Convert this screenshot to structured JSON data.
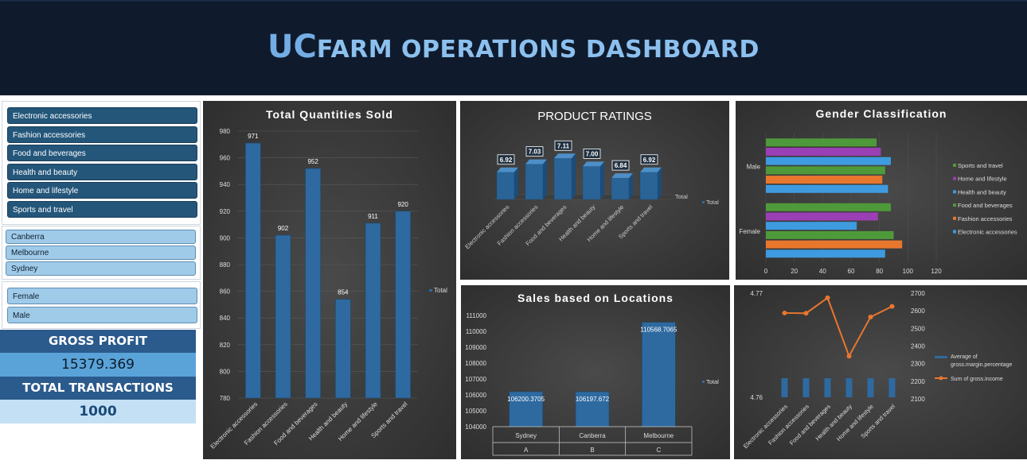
{
  "header": {
    "title_uc": "UC",
    "title_rest": "FARM OPERATIONS DASHBOARD"
  },
  "slicers": {
    "products": [
      "Electronic accessories",
      "Fashion accessories",
      "Food and beverages",
      "Health and beauty",
      "Home and lifestyle",
      "Sports and travel"
    ],
    "cities": [
      "Canberra",
      "Melbourne",
      "Sydney"
    ],
    "genders": [
      "Female",
      "Male"
    ]
  },
  "kpis": {
    "gross_profit_label": "GROSS PROFIT",
    "gross_profit_value": "15379.369",
    "transactions_label": "TOTAL TRANSACTIONS",
    "transactions_value": "1000"
  },
  "colors": {
    "bar_blue": "#2e6aa0",
    "green": "#4e9a3a",
    "purple": "#9b3fb5",
    "light_blue": "#3e9be0",
    "orange": "#e8772e"
  },
  "chart_data": [
    {
      "id": "qty",
      "type": "bar",
      "title": "Total Quantities Sold",
      "categories": [
        "Electronic accessories",
        "Fashion accessories",
        "Food and beverages",
        "Health and beauty",
        "Home and lifestyle",
        "Sports and travel"
      ],
      "values": [
        971,
        902,
        952,
        854,
        911,
        920
      ],
      "ylim": [
        780,
        980
      ],
      "yticks": [
        780,
        800,
        820,
        840,
        860,
        880,
        900,
        920,
        940,
        960,
        980
      ],
      "legend": "Total"
    },
    {
      "id": "ratings",
      "type": "bar",
      "title": "PRODUCT RATINGS",
      "categories": [
        "Electronic accessories",
        "Fashion accessories",
        "Food and beverages",
        "Health and beauty",
        "Home and lifestyle",
        "Sports and travel"
      ],
      "values": [
        6.92,
        7.03,
        7.11,
        7.0,
        6.84,
        6.92
      ],
      "labels": [
        "6.92",
        "7.03",
        "7.11",
        "7.00",
        "6.84",
        "6.92"
      ],
      "ylim": [
        6.7,
        7.2
      ],
      "axis_label": "Total",
      "legend": "Total"
    },
    {
      "id": "gender",
      "type": "bar",
      "orientation": "horizontal",
      "title": "Gender Classification",
      "groups": [
        "Female",
        "Male"
      ],
      "xlim": [
        0,
        120
      ],
      "xticks": [
        0,
        20,
        40,
        60,
        80,
        100,
        120
      ],
      "series": [
        {
          "name": "Electronic accessories",
          "color": "#3e9be0",
          "values": [
            84,
            86
          ]
        },
        {
          "name": "Fashion accessories",
          "color": "#e8772e",
          "values": [
            96,
            82
          ]
        },
        {
          "name": "Food and beverages",
          "color": "#4e9a3a",
          "values": [
            90,
            84
          ]
        },
        {
          "name": "Health and beauty",
          "color": "#3e9be0",
          "values": [
            64,
            88
          ]
        },
        {
          "name": "Home and lifestyle",
          "color": "#9b3fb5",
          "values": [
            79,
            81
          ]
        },
        {
          "name": "Sports and travel",
          "color": "#4e9a3a",
          "values": [
            88,
            78
          ]
        }
      ],
      "legend_order": [
        "Sports and travel",
        "Home and lifestyle",
        "Health and beauty",
        "Food and beverages",
        "Fashion accessories",
        "Electronic accessories"
      ]
    },
    {
      "id": "locations",
      "type": "bar",
      "title": "Sales based on Locations",
      "categories": [
        "Sydney",
        "Canberra",
        "Melbourne"
      ],
      "sub_labels": [
        "A",
        "B",
        "C"
      ],
      "values": [
        106200.3705,
        106197.672,
        110568.7065
      ],
      "labels": [
        "106200.3705",
        "106197.672",
        "110568.7065"
      ],
      "ylim": [
        104000,
        111000
      ],
      "yticks": [
        104000,
        105000,
        106000,
        107000,
        108000,
        109000,
        110000,
        111000
      ],
      "legend": "Total"
    },
    {
      "id": "combo",
      "type": "line",
      "title": "",
      "categories": [
        "Electronic accessories",
        "Fashion accessories",
        "Food and beverages",
        "Health and beauty",
        "Home and lifestyle",
        "Sports and travel"
      ],
      "series": [
        {
          "name": "Average of gross.margin.percentage",
          "kind": "bar",
          "axis": "left",
          "values": [
            4.7619,
            4.7619,
            4.7619,
            4.7619,
            4.7619,
            4.7619
          ]
        },
        {
          "name": "Sum of gross.income",
          "kind": "line",
          "axis": "right",
          "values": [
            2587.5,
            2586.0,
            2673.6,
            2342.6,
            2564.9,
            2625.0
          ]
        }
      ],
      "left_ticks": [
        "4.77",
        "4.76"
      ],
      "right_ylim": [
        2100,
        2700
      ],
      "right_ticks": [
        2100,
        2200,
        2300,
        2400,
        2500,
        2600,
        2700
      ]
    }
  ]
}
